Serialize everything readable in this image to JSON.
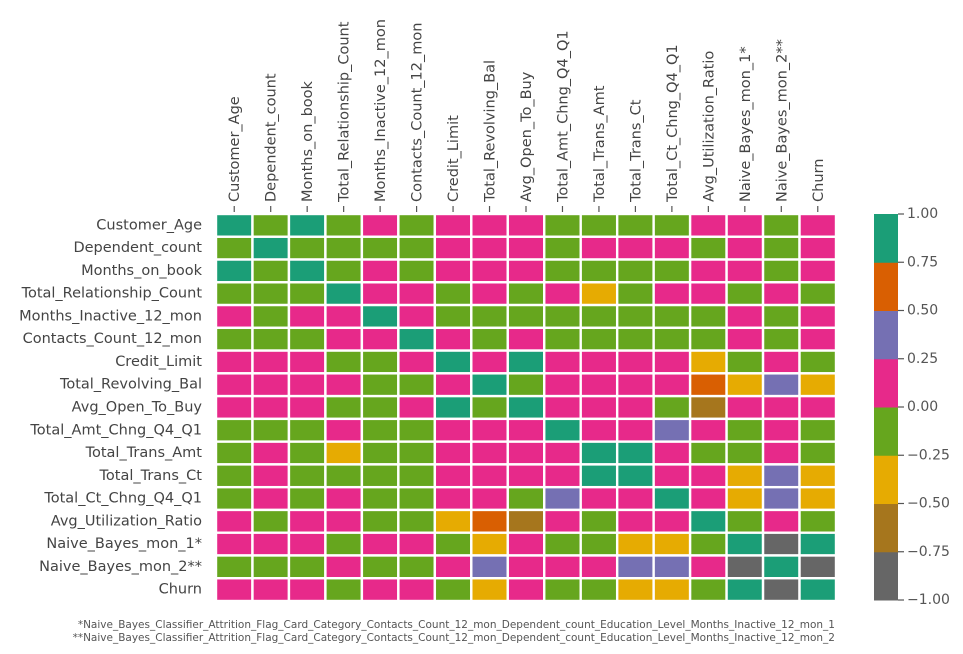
{
  "chart_data": {
    "type": "heatmap",
    "title": "",
    "labels": [
      "Customer_Age",
      "Dependent_count",
      "Months_on_book",
      "Total_Relationship_Count",
      "Months_Inactive_12_mon",
      "Contacts_Count_12_mon",
      "Credit_Limit",
      "Total_Revolving_Bal",
      "Avg_Open_To_Buy",
      "Total_Amt_Chng_Q4_Q1",
      "Total_Trans_Amt",
      "Total_Trans_Ct",
      "Total_Ct_Chng_Q4_Q1",
      "Avg_Utilization_Ratio",
      "Naive_Bayes_mon_1*",
      "Naive_Bayes_mon_2**",
      "Churn"
    ],
    "values": [
      [
        1.0,
        -0.12,
        0.79,
        -0.01,
        0.05,
        -0.02,
        0.0,
        0.01,
        0.0,
        -0.06,
        -0.05,
        -0.07,
        -0.01,
        0.01,
        0.02,
        -0.02,
        0.02
      ],
      [
        -0.12,
        1.0,
        -0.1,
        -0.04,
        -0.01,
        -0.04,
        0.07,
        0.0,
        0.07,
        -0.04,
        0.03,
        0.05,
        0.01,
        -0.04,
        0.02,
        -0.02,
        0.02
      ],
      [
        0.79,
        -0.1,
        1.0,
        -0.01,
        0.07,
        -0.01,
        0.01,
        0.01,
        0.01,
        -0.05,
        -0.04,
        -0.05,
        -0.01,
        0.0,
        0.01,
        -0.01,
        0.01
      ],
      [
        -0.01,
        -0.04,
        -0.01,
        1.0,
        -0.0,
        0.06,
        -0.07,
        0.01,
        -0.07,
        0.05,
        -0.35,
        -0.24,
        0.04,
        0.07,
        -0.15,
        0.15,
        -0.15
      ],
      [
        0.05,
        -0.01,
        0.07,
        -0.0,
        1.0,
        0.03,
        -0.02,
        -0.04,
        -0.02,
        -0.03,
        -0.04,
        -0.04,
        -0.04,
        -0.01,
        0.15,
        -0.15,
        0.15
      ],
      [
        -0.02,
        -0.04,
        -0.01,
        0.06,
        0.03,
        1.0,
        0.02,
        -0.05,
        0.03,
        -0.02,
        -0.11,
        -0.15,
        -0.09,
        -0.06,
        0.2,
        -0.2,
        0.2
      ],
      [
        0.0,
        0.07,
        0.01,
        -0.07,
        -0.02,
        0.02,
        1.0,
        0.04,
        1.0,
        0.01,
        0.17,
        0.08,
        -0.0,
        -0.48,
        -0.02,
        0.02,
        -0.02
      ],
      [
        0.01,
        0.0,
        0.01,
        0.01,
        -0.04,
        -0.05,
        0.04,
        1.0,
        -0.05,
        0.06,
        0.06,
        0.06,
        0.09,
        0.62,
        -0.26,
        0.26,
        -0.26
      ],
      [
        0.0,
        0.07,
        0.01,
        -0.07,
        -0.02,
        0.03,
        1.0,
        -0.05,
        1.0,
        0.01,
        0.17,
        0.07,
        -0.01,
        -0.54,
        0.0,
        0.0,
        0.0
      ],
      [
        -0.06,
        -0.04,
        -0.05,
        0.05,
        -0.03,
        -0.02,
        0.01,
        0.06,
        0.01,
        1.0,
        0.04,
        0.01,
        0.38,
        0.04,
        -0.13,
        0.13,
        -0.13
      ],
      [
        -0.05,
        0.03,
        -0.04,
        -0.35,
        -0.04,
        -0.11,
        0.17,
        0.06,
        0.17,
        0.04,
        1.0,
        0.81,
        0.09,
        -0.08,
        -0.17,
        0.17,
        -0.17
      ],
      [
        -0.07,
        0.05,
        -0.05,
        -0.24,
        -0.04,
        -0.15,
        0.08,
        0.06,
        0.07,
        0.01,
        0.81,
        1.0,
        0.11,
        0.0,
        -0.37,
        0.37,
        -0.37
      ],
      [
        -0.01,
        0.01,
        -0.01,
        0.04,
        -0.04,
        -0.09,
        -0.0,
        0.09,
        -0.01,
        0.38,
        0.09,
        0.11,
        1.0,
        0.07,
        -0.29,
        0.29,
        -0.29
      ],
      [
        0.01,
        -0.04,
        0.0,
        0.07,
        -0.01,
        -0.06,
        -0.48,
        0.62,
        -0.54,
        0.04,
        -0.08,
        0.0,
        0.07,
        1.0,
        -0.18,
        0.18,
        -0.18
      ],
      [
        0.02,
        0.02,
        0.01,
        -0.15,
        0.15,
        0.2,
        -0.02,
        -0.26,
        0.0,
        -0.13,
        -0.17,
        -0.37,
        -0.29,
        -0.18,
        1.0,
        -1.0,
        1.0
      ],
      [
        -0.02,
        -0.02,
        -0.01,
        0.15,
        -0.15,
        -0.2,
        0.02,
        0.26,
        0.0,
        0.13,
        0.17,
        0.37,
        0.29,
        0.18,
        -1.0,
        1.0,
        -1.0
      ],
      [
        0.02,
        0.02,
        0.01,
        -0.15,
        0.15,
        0.2,
        -0.02,
        -0.26,
        0.0,
        -0.13,
        -0.17,
        -0.37,
        -0.29,
        -0.18,
        1.0,
        -1.0,
        1.0
      ]
    ],
    "colorbar": {
      "ticks": [
        "1.00",
        "0.75",
        "0.50",
        "0.25",
        "0.00",
        "−0.25",
        "−0.50",
        "−0.75",
        "−1.00"
      ],
      "tick_values": [
        1.0,
        0.75,
        0.5,
        0.25,
        0.0,
        -0.25,
        -0.5,
        -0.75,
        -1.0
      ],
      "colors_low_to_high": [
        "#666666",
        "#a6761d",
        "#e6ab02",
        "#66a61e",
        "#e7298a",
        "#7570b3",
        "#d95f02",
        "#1b9e77"
      ],
      "range": [
        -1.0,
        1.0
      ]
    },
    "grid_line_color": "#ffffff"
  },
  "footnotes": [
    "*Naive_Bayes_Classifier_Attrition_Flag_Card_Category_Contacts_Count_12_mon_Dependent_count_Education_Level_Months_Inactive_12_mon_1",
    "**Naive_Bayes_Classifier_Attrition_Flag_Card_Category_Contacts_Count_12_mon_Dependent_count_Education_Level_Months_Inactive_12_mon_2"
  ]
}
